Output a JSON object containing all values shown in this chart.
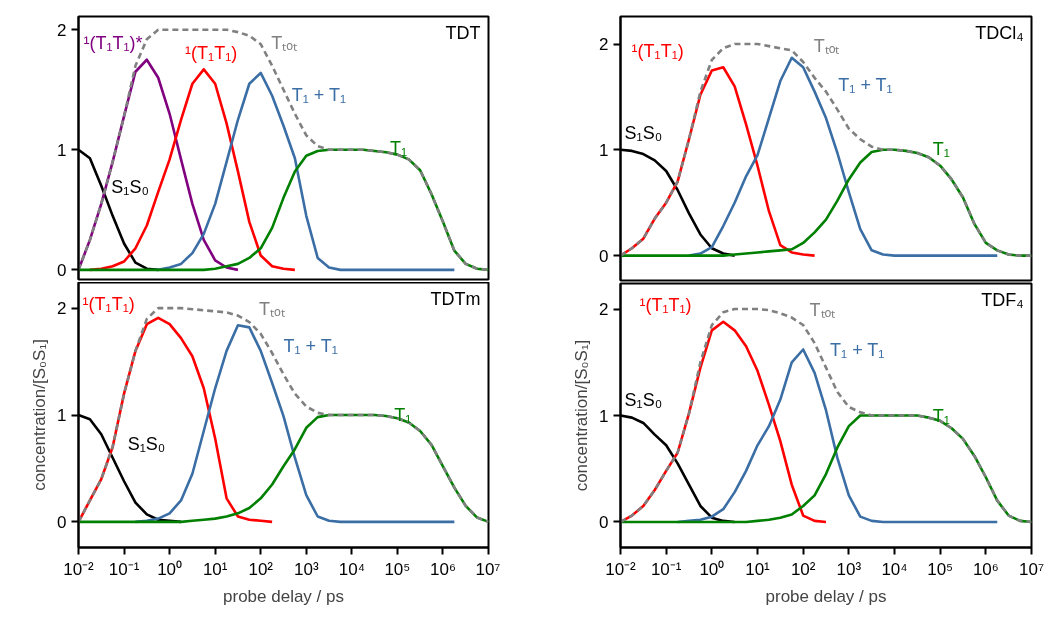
{
  "chart_data": [
    {
      "type": "line",
      "title": "TDT",
      "log": "x",
      "xlim": [
        0.01,
        10000000
      ],
      "ylim": [
        -0.08,
        2.11
      ],
      "tick_labels": "y",
      "yticks": [
        0,
        1,
        2
      ],
      "x": [
        0.01,
        0.0178,
        0.0316,
        0.0562,
        0.1,
        0.178,
        0.316,
        0.562,
        1,
        1.78,
        3.16,
        5.62,
        10,
        17.8,
        31.6,
        56.2,
        100,
        178,
        316,
        562,
        1000,
        1780,
        3160,
        5620,
        10000,
        17800,
        31600,
        56200,
        100000,
        178000,
        316000,
        562000,
        1000000,
        1780000,
        3160000,
        5620000,
        10000000
      ],
      "series": [
        {
          "name": "S₁S₀",
          "color": "#000000",
          "values": [
            1.0,
            0.93,
            0.7,
            0.45,
            0.22,
            0.06,
            0.01,
            0,
            null,
            null,
            null,
            null,
            null,
            null,
            null,
            null,
            null,
            null,
            null,
            null,
            null,
            null,
            null,
            null,
            null,
            null,
            null,
            null,
            null,
            null,
            null,
            null,
            null,
            null,
            null,
            null,
            null
          ]
        },
        {
          "name": "¹(T₁T₁)*",
          "color": "#800080",
          "values": [
            0,
            0.25,
            0.55,
            0.9,
            1.28,
            1.65,
            1.75,
            1.6,
            1.3,
            0.92,
            0.55,
            0.25,
            0.08,
            0.02,
            0,
            null,
            null,
            null,
            null,
            null,
            null,
            null,
            null,
            null,
            null,
            null,
            null,
            null,
            null,
            null,
            null,
            null,
            null,
            null,
            null,
            null,
            null
          ]
        },
        {
          "name": "¹(T₁T₁)",
          "color": "#ff0000",
          "values": [
            null,
            0,
            0.01,
            0.03,
            0.07,
            0.18,
            0.37,
            0.65,
            0.92,
            1.25,
            1.55,
            1.67,
            1.55,
            1.22,
            0.82,
            0.4,
            0.12,
            0.03,
            0.01,
            0,
            null,
            null,
            null,
            null,
            null,
            null,
            null,
            null,
            null,
            null,
            null,
            null,
            null,
            null,
            null,
            null,
            null
          ]
        },
        {
          "name": "T₁ + T₁",
          "color": "#3a6ea5",
          "values": [
            null,
            null,
            null,
            null,
            null,
            null,
            null,
            0,
            0.02,
            0.05,
            0.14,
            0.3,
            0.55,
            0.9,
            1.25,
            1.55,
            1.64,
            1.45,
            1.2,
            0.93,
            0.45,
            0.1,
            0.02,
            0,
            0,
            0,
            0,
            0,
            0,
            0,
            0,
            0,
            0,
            0,
            null,
            null,
            null
          ]
        },
        {
          "name": "T₁",
          "color": "#008000",
          "values": [
            0,
            0,
            0,
            0,
            0,
            0,
            0,
            0,
            0,
            0,
            0,
            0,
            0.01,
            0.03,
            0.05,
            0.1,
            0.18,
            0.35,
            0.6,
            0.82,
            0.95,
            0.99,
            1.0,
            1.0,
            1.0,
            1.0,
            0.99,
            0.98,
            0.96,
            0.92,
            0.83,
            0.63,
            0.4,
            0.16,
            0.05,
            0.01,
            0
          ]
        },
        {
          "name": "Tₜₒₜ",
          "color": "#808080",
          "line_style": "dashed",
          "values": [
            0,
            0.25,
            0.55,
            0.9,
            1.28,
            1.7,
            1.92,
            2.0,
            2.0,
            2.0,
            2.0,
            2.0,
            2.0,
            2.0,
            1.98,
            1.95,
            1.88,
            1.7,
            1.5,
            1.3,
            1.12,
            1.03,
            1.0,
            1.0,
            1.0,
            1.0,
            0.99,
            0.98,
            0.96,
            0.92,
            0.83,
            0.63,
            0.4,
            0.16,
            0.05,
            0.01,
            0
          ]
        }
      ]
    },
    {
      "type": "line",
      "title": "TDCl₄",
      "log": "x",
      "xlim": [
        0.01,
        10000000
      ],
      "ylim": [
        -0.235,
        2.26
      ],
      "tick_labels": "y",
      "yticks": [
        0,
        1,
        2
      ],
      "x": [
        0.01,
        0.0178,
        0.0316,
        0.0562,
        0.1,
        0.178,
        0.316,
        0.562,
        1,
        1.78,
        3.16,
        5.62,
        10,
        17.8,
        31.6,
        56.2,
        100,
        178,
        316,
        562,
        1000,
        1780,
        3160,
        5620,
        10000,
        17800,
        31600,
        56200,
        100000,
        178000,
        316000,
        562000,
        1000000,
        1780000,
        3160000,
        5620000,
        10000000
      ],
      "series": [
        {
          "name": "S₁S₀",
          "color": "#000000",
          "values": [
            1.0,
            0.99,
            0.96,
            0.9,
            0.8,
            0.62,
            0.4,
            0.2,
            0.07,
            0.02,
            0,
            null,
            null,
            null,
            null,
            null,
            null,
            null,
            null,
            null,
            null,
            null,
            null,
            null,
            null,
            null,
            null,
            null,
            null,
            null,
            null,
            null,
            null,
            null,
            null,
            null,
            null
          ]
        },
        {
          "name": "¹(T₁T₁)",
          "color": "#ff0000",
          "values": [
            0,
            0.07,
            0.16,
            0.35,
            0.5,
            0.7,
            1.1,
            1.52,
            1.75,
            1.78,
            1.6,
            1.24,
            0.85,
            0.42,
            0.1,
            0.03,
            0.01,
            0,
            null,
            null,
            null,
            null,
            null,
            null,
            null,
            null,
            null,
            null,
            null,
            null,
            null,
            null,
            null,
            null,
            null,
            null,
            null
          ]
        },
        {
          "name": "T₁ + T₁",
          "color": "#3a6ea5",
          "values": [
            null,
            null,
            null,
            null,
            null,
            null,
            0,
            0.02,
            0.08,
            0.28,
            0.5,
            0.75,
            0.95,
            1.3,
            1.65,
            1.87,
            1.78,
            1.55,
            1.3,
            0.97,
            0.6,
            0.25,
            0.05,
            0.01,
            0,
            0,
            0,
            0,
            0,
            0,
            0,
            0,
            0,
            0,
            null,
            null,
            null
          ]
        },
        {
          "name": "T₁",
          "color": "#008000",
          "values": [
            0,
            0,
            0,
            0,
            0,
            0,
            0,
            0,
            0,
            0,
            0.01,
            0.02,
            0.03,
            0.04,
            0.05,
            0.06,
            0.12,
            0.22,
            0.34,
            0.52,
            0.72,
            0.88,
            0.98,
            1.0,
            1.0,
            0.99,
            0.97,
            0.93,
            0.85,
            0.72,
            0.55,
            0.3,
            0.12,
            0.05,
            0.01,
            0,
            0
          ]
        },
        {
          "name": "Tₜₒₜ",
          "color": "#808080",
          "line_style": "dashed",
          "values": [
            0,
            0.07,
            0.16,
            0.35,
            0.5,
            0.7,
            1.1,
            1.55,
            1.85,
            1.96,
            2.0,
            2.0,
            2.0,
            1.98,
            1.96,
            1.94,
            1.83,
            1.68,
            1.55,
            1.38,
            1.2,
            1.1,
            1.03,
            1.0,
            1.0,
            0.99,
            0.97,
            0.93,
            0.85,
            0.72,
            0.55,
            0.3,
            0.12,
            0.05,
            0.01,
            0,
            0
          ]
        }
      ]
    },
    {
      "type": "line",
      "title": "TDTm",
      "log": "x",
      "xlim": [
        0.01,
        10000000
      ],
      "ylim": [
        -0.24,
        2.24
      ],
      "xlabel": "probe delay / ps",
      "ylabel": "concentration/[S₀S₁]",
      "xticks": [
        {
          "value": 0.01,
          "label": "10⁻²"
        },
        {
          "value": 0.1,
          "label": "10⁻¹"
        },
        {
          "value": 1,
          "label": "10⁰"
        },
        {
          "value": 10,
          "label": "10¹"
        },
        {
          "value": 100,
          "label": "10²"
        },
        {
          "value": 1000,
          "label": "10³"
        },
        {
          "value": 10000,
          "label": "10⁴"
        },
        {
          "value": 100000,
          "label": "10⁵"
        },
        {
          "value": 1000000,
          "label": "10⁶"
        },
        {
          "value": 10000000,
          "label": "10⁷"
        }
      ],
      "yticks": [
        0,
        1,
        2
      ],
      "x": [
        0.01,
        0.0178,
        0.0316,
        0.0562,
        0.1,
        0.178,
        0.316,
        0.562,
        1,
        1.78,
        3.16,
        5.62,
        10,
        17.8,
        31.6,
        56.2,
        100,
        178,
        316,
        562,
        1000,
        1780,
        3160,
        5620,
        10000,
        17800,
        31600,
        56200,
        100000,
        178000,
        316000,
        562000,
        1000000,
        1780000,
        3160000,
        5620000,
        10000000
      ],
      "series": [
        {
          "name": "S₁S₀",
          "color": "#000000",
          "values": [
            1.0,
            0.96,
            0.82,
            0.6,
            0.38,
            0.18,
            0.07,
            0.02,
            0.01,
            0,
            null,
            null,
            null,
            null,
            null,
            null,
            null,
            null,
            null,
            null,
            null,
            null,
            null,
            null,
            null,
            null,
            null,
            null,
            null,
            null,
            null,
            null,
            null,
            null,
            null,
            null,
            null
          ]
        },
        {
          "name": "¹(T₁T₁)",
          "color": "#ff0000",
          "values": [
            0,
            0.2,
            0.4,
            0.7,
            1.2,
            1.6,
            1.85,
            1.91,
            1.85,
            1.72,
            1.55,
            1.25,
            0.78,
            0.22,
            0.05,
            0.02,
            0.01,
            0,
            null,
            null,
            null,
            null,
            null,
            null,
            null,
            null,
            null,
            null,
            null,
            null,
            null,
            null,
            null,
            null,
            null,
            null,
            null
          ]
        },
        {
          "name": "T₁ + T₁",
          "color": "#3a6ea5",
          "values": [
            null,
            null,
            null,
            null,
            null,
            0,
            0.01,
            0.03,
            0.08,
            0.2,
            0.45,
            0.85,
            1.25,
            1.6,
            1.84,
            1.82,
            1.6,
            1.3,
            0.99,
            0.6,
            0.25,
            0.05,
            0.01,
            0,
            0,
            0,
            0,
            0,
            0,
            0,
            0,
            0,
            0,
            0,
            null,
            null,
            null
          ]
        },
        {
          "name": "T₁",
          "color": "#008000",
          "values": [
            0,
            0,
            0,
            0,
            0,
            0,
            0,
            0,
            0,
            0,
            0.01,
            0.02,
            0.03,
            0.05,
            0.08,
            0.13,
            0.22,
            0.35,
            0.52,
            0.68,
            0.88,
            0.98,
            1.0,
            1.0,
            1.0,
            1.0,
            1.0,
            0.99,
            0.97,
            0.93,
            0.85,
            0.72,
            0.52,
            0.32,
            0.15,
            0.04,
            0
          ]
        },
        {
          "name": "Tₜₒₜ",
          "color": "#808080",
          "line_style": "dashed",
          "values": [
            0,
            0.2,
            0.4,
            0.7,
            1.2,
            1.6,
            1.9,
            2.0,
            2.0,
            2.0,
            1.99,
            1.98,
            1.97,
            1.96,
            1.93,
            1.87,
            1.76,
            1.58,
            1.38,
            1.2,
            1.08,
            1.02,
            1.0,
            1.0,
            1.0,
            1.0,
            1.0,
            0.99,
            0.97,
            0.93,
            0.85,
            0.72,
            0.52,
            0.32,
            0.15,
            0.04,
            0
          ]
        }
      ]
    },
    {
      "type": "line",
      "title": "TDF₄",
      "log": "x",
      "xlim": [
        0.01,
        10000000
      ],
      "ylim": [
        -0.24,
        2.24
      ],
      "xlabel": "probe delay / ps",
      "ylabel": "concentration/[S₀S₁]",
      "xticks": [
        {
          "value": 0.01,
          "label": "10⁻²"
        },
        {
          "value": 0.1,
          "label": "10⁻¹"
        },
        {
          "value": 1,
          "label": "10⁰"
        },
        {
          "value": 10,
          "label": "10¹"
        },
        {
          "value": 100,
          "label": "10²"
        },
        {
          "value": 1000,
          "label": "10³"
        },
        {
          "value": 10000,
          "label": "10⁴"
        },
        {
          "value": 100000,
          "label": "10⁵"
        },
        {
          "value": 1000000,
          "label": "10⁶"
        },
        {
          "value": 10000000,
          "label": "10⁷"
        }
      ],
      "yticks": [
        0,
        1,
        2
      ],
      "x": [
        0.01,
        0.0178,
        0.0316,
        0.0562,
        0.1,
        0.178,
        0.316,
        0.562,
        1,
        1.78,
        3.16,
        5.62,
        10,
        17.8,
        31.6,
        56.2,
        100,
        178,
        316,
        562,
        1000,
        1780,
        3160,
        5620,
        10000,
        17800,
        31600,
        56200,
        100000,
        178000,
        316000,
        562000,
        1000000,
        1780000,
        3160000,
        5620000,
        10000000
      ],
      "series": [
        {
          "name": "S₁S₀",
          "color": "#000000",
          "values": [
            1.0,
            0.98,
            0.93,
            0.82,
            0.72,
            0.55,
            0.35,
            0.15,
            0.04,
            0.01,
            0,
            null,
            null,
            null,
            null,
            null,
            null,
            null,
            null,
            null,
            null,
            null,
            null,
            null,
            null,
            null,
            null,
            null,
            null,
            null,
            null,
            null,
            null,
            null,
            null,
            null,
            null
          ]
        },
        {
          "name": "¹(T₁T₁)",
          "color": "#ff0000",
          "values": [
            0,
            0.06,
            0.15,
            0.3,
            0.48,
            0.65,
            1.02,
            1.45,
            1.8,
            1.88,
            1.8,
            1.65,
            1.42,
            1.1,
            0.76,
            0.35,
            0.06,
            0.01,
            0,
            null,
            null,
            null,
            null,
            null,
            null,
            null,
            null,
            null,
            null,
            null,
            null,
            null,
            null,
            null,
            null,
            null,
            null
          ]
        },
        {
          "name": "T₁ + T₁",
          "color": "#3a6ea5",
          "values": [
            null,
            null,
            null,
            null,
            null,
            0,
            0.01,
            0.02,
            0.05,
            0.12,
            0.28,
            0.48,
            0.72,
            0.9,
            1.15,
            1.5,
            1.62,
            1.4,
            1.05,
            0.6,
            0.25,
            0.05,
            0.01,
            0,
            0,
            0,
            0,
            0,
            0,
            0,
            0,
            0,
            0,
            0,
            null,
            null,
            null
          ]
        },
        {
          "name": "T₁",
          "color": "#008000",
          "values": [
            0,
            0,
            0,
            0,
            0,
            0,
            0,
            0,
            0,
            0,
            0,
            0,
            0.01,
            0.02,
            0.04,
            0.07,
            0.15,
            0.25,
            0.45,
            0.7,
            0.9,
            1.0,
            1.0,
            1.0,
            1.0,
            1.0,
            1.0,
            0.98,
            0.95,
            0.88,
            0.78,
            0.62,
            0.42,
            0.2,
            0.06,
            0.01,
            0
          ]
        },
        {
          "name": "Tₜₒₜ",
          "color": "#808080",
          "line_style": "dashed",
          "values": [
            0,
            0.06,
            0.15,
            0.3,
            0.48,
            0.65,
            1.02,
            1.5,
            1.85,
            1.97,
            2.0,
            2.0,
            2.0,
            1.99,
            1.96,
            1.92,
            1.85,
            1.68,
            1.45,
            1.22,
            1.08,
            1.03,
            1.0,
            1.0,
            1.0,
            1.0,
            1.0,
            0.98,
            0.95,
            0.88,
            0.78,
            0.62,
            0.42,
            0.2,
            0.06,
            0.01,
            0
          ]
        }
      ]
    }
  ]
}
